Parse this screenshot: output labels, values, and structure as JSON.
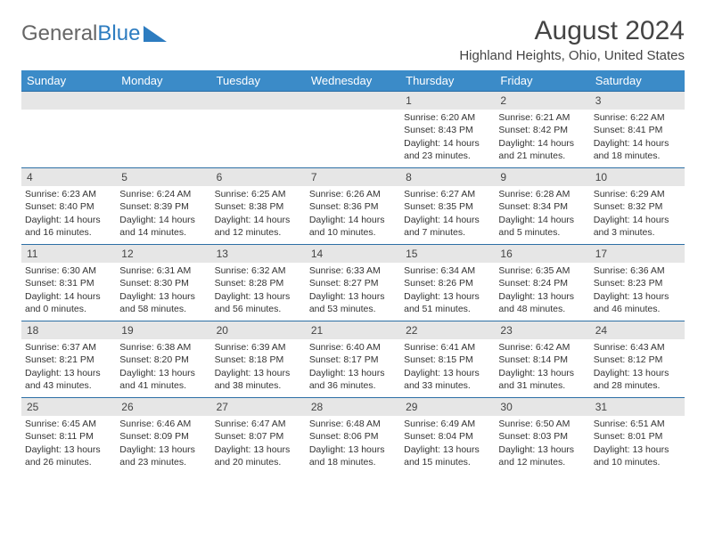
{
  "brand": {
    "word1": "General",
    "word2": "Blue"
  },
  "title": "August 2024",
  "subtitle": "Highland Heights, Ohio, United States",
  "colors": {
    "header_bg": "#3b8bc8",
    "header_text": "#ffffff",
    "daynum_bg": "#e6e6e6",
    "daynum_border": "#2d6fa5",
    "body_text": "#333333",
    "brand_gray": "#666666",
    "brand_blue": "#2d7cc0",
    "page_bg": "#ffffff"
  },
  "typography": {
    "title_fontsize": 30,
    "subtitle_fontsize": 15,
    "header_fontsize": 13,
    "cell_fontsize": 10.5,
    "daynum_fontsize": 12
  },
  "layout": {
    "cols": 7,
    "rows": 5,
    "cell_min_height": 86
  },
  "day_names": [
    "Sunday",
    "Monday",
    "Tuesday",
    "Wednesday",
    "Thursday",
    "Friday",
    "Saturday"
  ],
  "weeks": [
    [
      {
        "n": "",
        "sr": "",
        "ss": "",
        "d1": "",
        "d2": ""
      },
      {
        "n": "",
        "sr": "",
        "ss": "",
        "d1": "",
        "d2": ""
      },
      {
        "n": "",
        "sr": "",
        "ss": "",
        "d1": "",
        "d2": ""
      },
      {
        "n": "",
        "sr": "",
        "ss": "",
        "d1": "",
        "d2": ""
      },
      {
        "n": "1",
        "sr": "Sunrise: 6:20 AM",
        "ss": "Sunset: 8:43 PM",
        "d1": "Daylight: 14 hours",
        "d2": "and 23 minutes."
      },
      {
        "n": "2",
        "sr": "Sunrise: 6:21 AM",
        "ss": "Sunset: 8:42 PM",
        "d1": "Daylight: 14 hours",
        "d2": "and 21 minutes."
      },
      {
        "n": "3",
        "sr": "Sunrise: 6:22 AM",
        "ss": "Sunset: 8:41 PM",
        "d1": "Daylight: 14 hours",
        "d2": "and 18 minutes."
      }
    ],
    [
      {
        "n": "4",
        "sr": "Sunrise: 6:23 AM",
        "ss": "Sunset: 8:40 PM",
        "d1": "Daylight: 14 hours",
        "d2": "and 16 minutes."
      },
      {
        "n": "5",
        "sr": "Sunrise: 6:24 AM",
        "ss": "Sunset: 8:39 PM",
        "d1": "Daylight: 14 hours",
        "d2": "and 14 minutes."
      },
      {
        "n": "6",
        "sr": "Sunrise: 6:25 AM",
        "ss": "Sunset: 8:38 PM",
        "d1": "Daylight: 14 hours",
        "d2": "and 12 minutes."
      },
      {
        "n": "7",
        "sr": "Sunrise: 6:26 AM",
        "ss": "Sunset: 8:36 PM",
        "d1": "Daylight: 14 hours",
        "d2": "and 10 minutes."
      },
      {
        "n": "8",
        "sr": "Sunrise: 6:27 AM",
        "ss": "Sunset: 8:35 PM",
        "d1": "Daylight: 14 hours",
        "d2": "and 7 minutes."
      },
      {
        "n": "9",
        "sr": "Sunrise: 6:28 AM",
        "ss": "Sunset: 8:34 PM",
        "d1": "Daylight: 14 hours",
        "d2": "and 5 minutes."
      },
      {
        "n": "10",
        "sr": "Sunrise: 6:29 AM",
        "ss": "Sunset: 8:32 PM",
        "d1": "Daylight: 14 hours",
        "d2": "and 3 minutes."
      }
    ],
    [
      {
        "n": "11",
        "sr": "Sunrise: 6:30 AM",
        "ss": "Sunset: 8:31 PM",
        "d1": "Daylight: 14 hours",
        "d2": "and 0 minutes."
      },
      {
        "n": "12",
        "sr": "Sunrise: 6:31 AM",
        "ss": "Sunset: 8:30 PM",
        "d1": "Daylight: 13 hours",
        "d2": "and 58 minutes."
      },
      {
        "n": "13",
        "sr": "Sunrise: 6:32 AM",
        "ss": "Sunset: 8:28 PM",
        "d1": "Daylight: 13 hours",
        "d2": "and 56 minutes."
      },
      {
        "n": "14",
        "sr": "Sunrise: 6:33 AM",
        "ss": "Sunset: 8:27 PM",
        "d1": "Daylight: 13 hours",
        "d2": "and 53 minutes."
      },
      {
        "n": "15",
        "sr": "Sunrise: 6:34 AM",
        "ss": "Sunset: 8:26 PM",
        "d1": "Daylight: 13 hours",
        "d2": "and 51 minutes."
      },
      {
        "n": "16",
        "sr": "Sunrise: 6:35 AM",
        "ss": "Sunset: 8:24 PM",
        "d1": "Daylight: 13 hours",
        "d2": "and 48 minutes."
      },
      {
        "n": "17",
        "sr": "Sunrise: 6:36 AM",
        "ss": "Sunset: 8:23 PM",
        "d1": "Daylight: 13 hours",
        "d2": "and 46 minutes."
      }
    ],
    [
      {
        "n": "18",
        "sr": "Sunrise: 6:37 AM",
        "ss": "Sunset: 8:21 PM",
        "d1": "Daylight: 13 hours",
        "d2": "and 43 minutes."
      },
      {
        "n": "19",
        "sr": "Sunrise: 6:38 AM",
        "ss": "Sunset: 8:20 PM",
        "d1": "Daylight: 13 hours",
        "d2": "and 41 minutes."
      },
      {
        "n": "20",
        "sr": "Sunrise: 6:39 AM",
        "ss": "Sunset: 8:18 PM",
        "d1": "Daylight: 13 hours",
        "d2": "and 38 minutes."
      },
      {
        "n": "21",
        "sr": "Sunrise: 6:40 AM",
        "ss": "Sunset: 8:17 PM",
        "d1": "Daylight: 13 hours",
        "d2": "and 36 minutes."
      },
      {
        "n": "22",
        "sr": "Sunrise: 6:41 AM",
        "ss": "Sunset: 8:15 PM",
        "d1": "Daylight: 13 hours",
        "d2": "and 33 minutes."
      },
      {
        "n": "23",
        "sr": "Sunrise: 6:42 AM",
        "ss": "Sunset: 8:14 PM",
        "d1": "Daylight: 13 hours",
        "d2": "and 31 minutes."
      },
      {
        "n": "24",
        "sr": "Sunrise: 6:43 AM",
        "ss": "Sunset: 8:12 PM",
        "d1": "Daylight: 13 hours",
        "d2": "and 28 minutes."
      }
    ],
    [
      {
        "n": "25",
        "sr": "Sunrise: 6:45 AM",
        "ss": "Sunset: 8:11 PM",
        "d1": "Daylight: 13 hours",
        "d2": "and 26 minutes."
      },
      {
        "n": "26",
        "sr": "Sunrise: 6:46 AM",
        "ss": "Sunset: 8:09 PM",
        "d1": "Daylight: 13 hours",
        "d2": "and 23 minutes."
      },
      {
        "n": "27",
        "sr": "Sunrise: 6:47 AM",
        "ss": "Sunset: 8:07 PM",
        "d1": "Daylight: 13 hours",
        "d2": "and 20 minutes."
      },
      {
        "n": "28",
        "sr": "Sunrise: 6:48 AM",
        "ss": "Sunset: 8:06 PM",
        "d1": "Daylight: 13 hours",
        "d2": "and 18 minutes."
      },
      {
        "n": "29",
        "sr": "Sunrise: 6:49 AM",
        "ss": "Sunset: 8:04 PM",
        "d1": "Daylight: 13 hours",
        "d2": "and 15 minutes."
      },
      {
        "n": "30",
        "sr": "Sunrise: 6:50 AM",
        "ss": "Sunset: 8:03 PM",
        "d1": "Daylight: 13 hours",
        "d2": "and 12 minutes."
      },
      {
        "n": "31",
        "sr": "Sunrise: 6:51 AM",
        "ss": "Sunset: 8:01 PM",
        "d1": "Daylight: 13 hours",
        "d2": "and 10 minutes."
      }
    ]
  ]
}
